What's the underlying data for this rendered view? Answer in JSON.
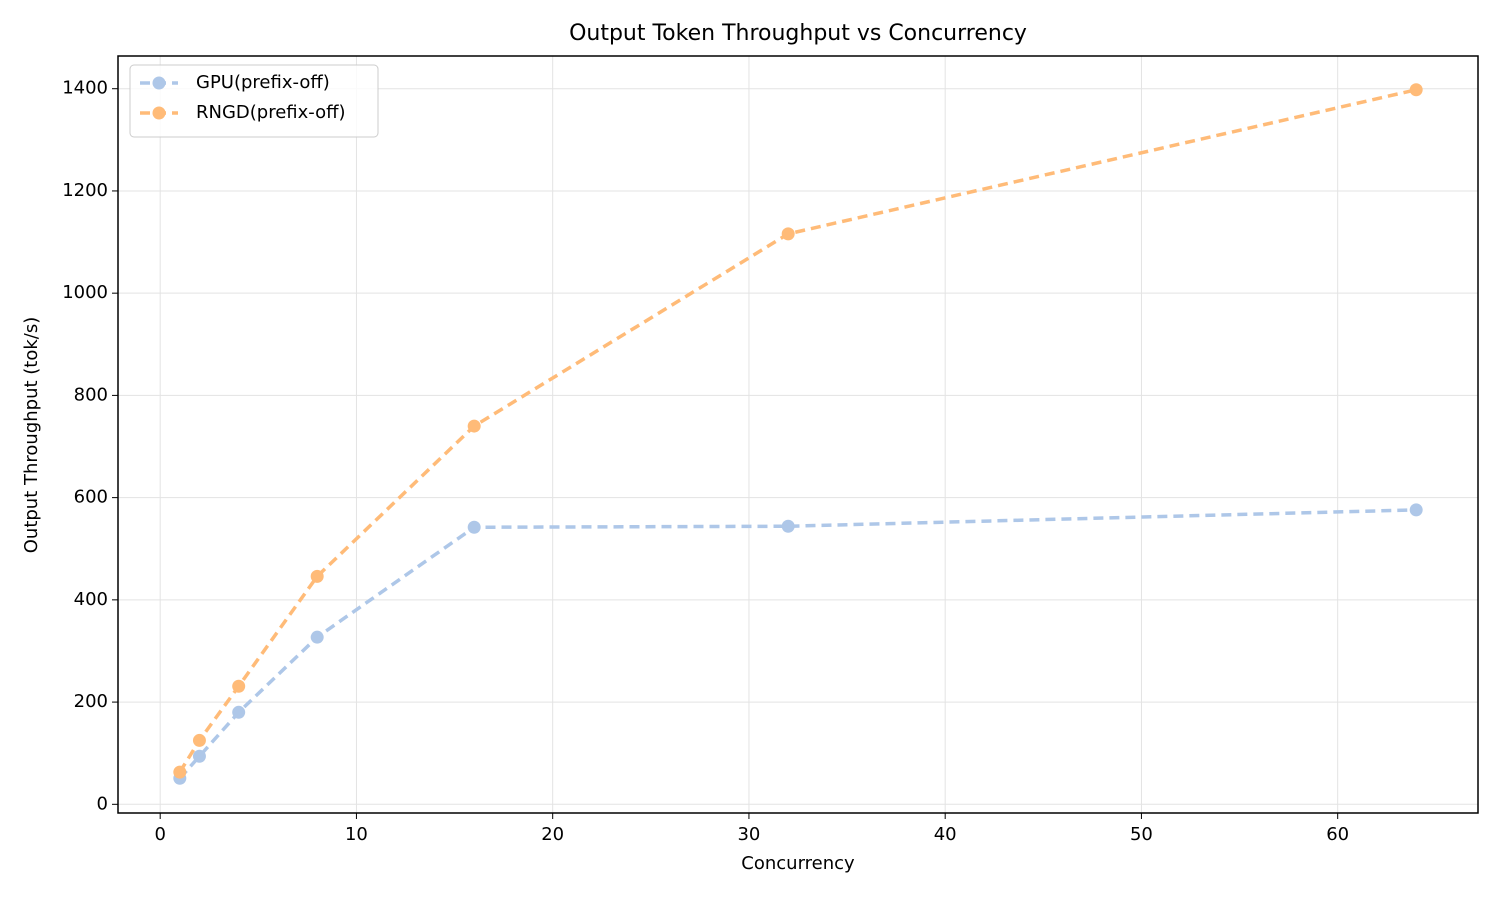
{
  "chart_data": {
    "type": "line",
    "title": "Output Token Throughput vs Concurrency",
    "xlabel": "Concurrency",
    "ylabel": "Output Throughput (tok/s)",
    "x": [
      1,
      2,
      4,
      8,
      16,
      32,
      64
    ],
    "series": [
      {
        "name": "GPU(prefix-off)",
        "color": "#aec7e8",
        "values": [
          51,
          94,
          180,
          327,
          542,
          544,
          576
        ]
      },
      {
        "name": "RNGD(prefix-off)",
        "color": "#ffbb78",
        "values": [
          63,
          125,
          231,
          446,
          740,
          1116,
          1398
        ]
      }
    ],
    "xlim": [
      -2.15,
      67.15
    ],
    "ylim": [
      -17,
      1464
    ],
    "xticks": [
      0,
      10,
      20,
      30,
      40,
      50,
      60
    ],
    "yticks": [
      0,
      200,
      400,
      600,
      800,
      1000,
      1200,
      1400
    ],
    "grid": true,
    "legend": "upper left",
    "line_style": "dashed"
  }
}
